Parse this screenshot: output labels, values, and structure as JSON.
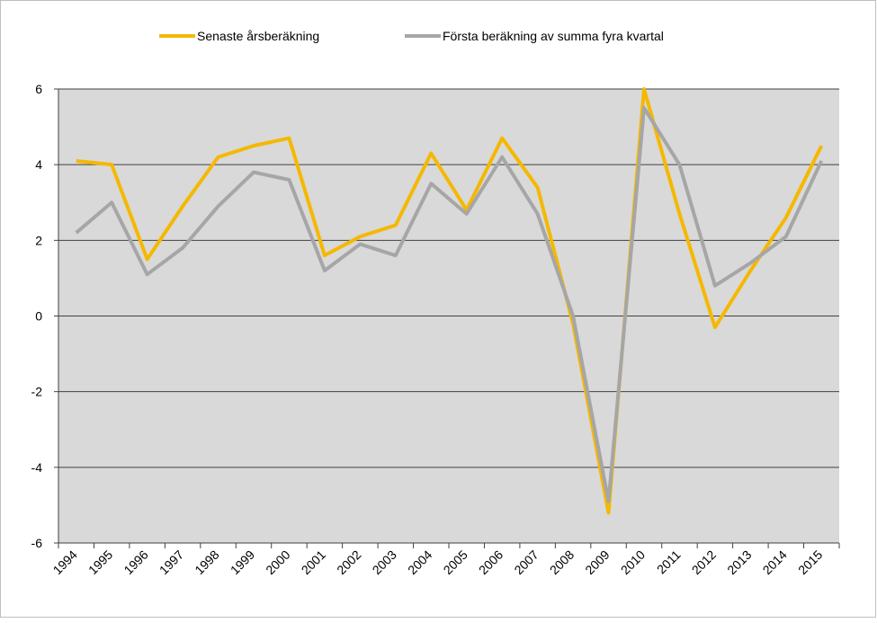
{
  "chart_data": {
    "type": "line",
    "categories": [
      "1994",
      "1995",
      "1996",
      "1997",
      "1998",
      "1999",
      "2000",
      "2001",
      "2002",
      "2003",
      "2004",
      "2005",
      "2006",
      "2007",
      "2008",
      "2009",
      "2010",
      "2011",
      "2012",
      "2013",
      "2014",
      "2015"
    ],
    "series": [
      {
        "name": "Senaste årsberäkning",
        "color": "#f5b800",
        "values": [
          4.1,
          4.0,
          1.5,
          2.9,
          4.2,
          4.5,
          4.7,
          1.6,
          2.1,
          2.4,
          4.3,
          2.8,
          4.7,
          3.4,
          -0.2,
          -5.2,
          6.0,
          2.7,
          -0.3,
          1.2,
          2.6,
          4.5
        ]
      },
      {
        "name": "Första beräkning av summa fyra kvartal",
        "color": "#a6a6a6",
        "values": [
          2.2,
          3.0,
          1.1,
          1.8,
          2.9,
          3.8,
          3.6,
          1.2,
          1.9,
          1.6,
          3.5,
          2.7,
          4.2,
          2.7,
          0.0,
          -4.9,
          5.5,
          4.0,
          0.8,
          1.4,
          2.1,
          4.1
        ]
      }
    ],
    "ylim": [
      -6,
      6
    ],
    "yticks": [
      -6,
      -4,
      -2,
      0,
      2,
      4,
      6
    ],
    "grid": true,
    "legend": "top"
  }
}
